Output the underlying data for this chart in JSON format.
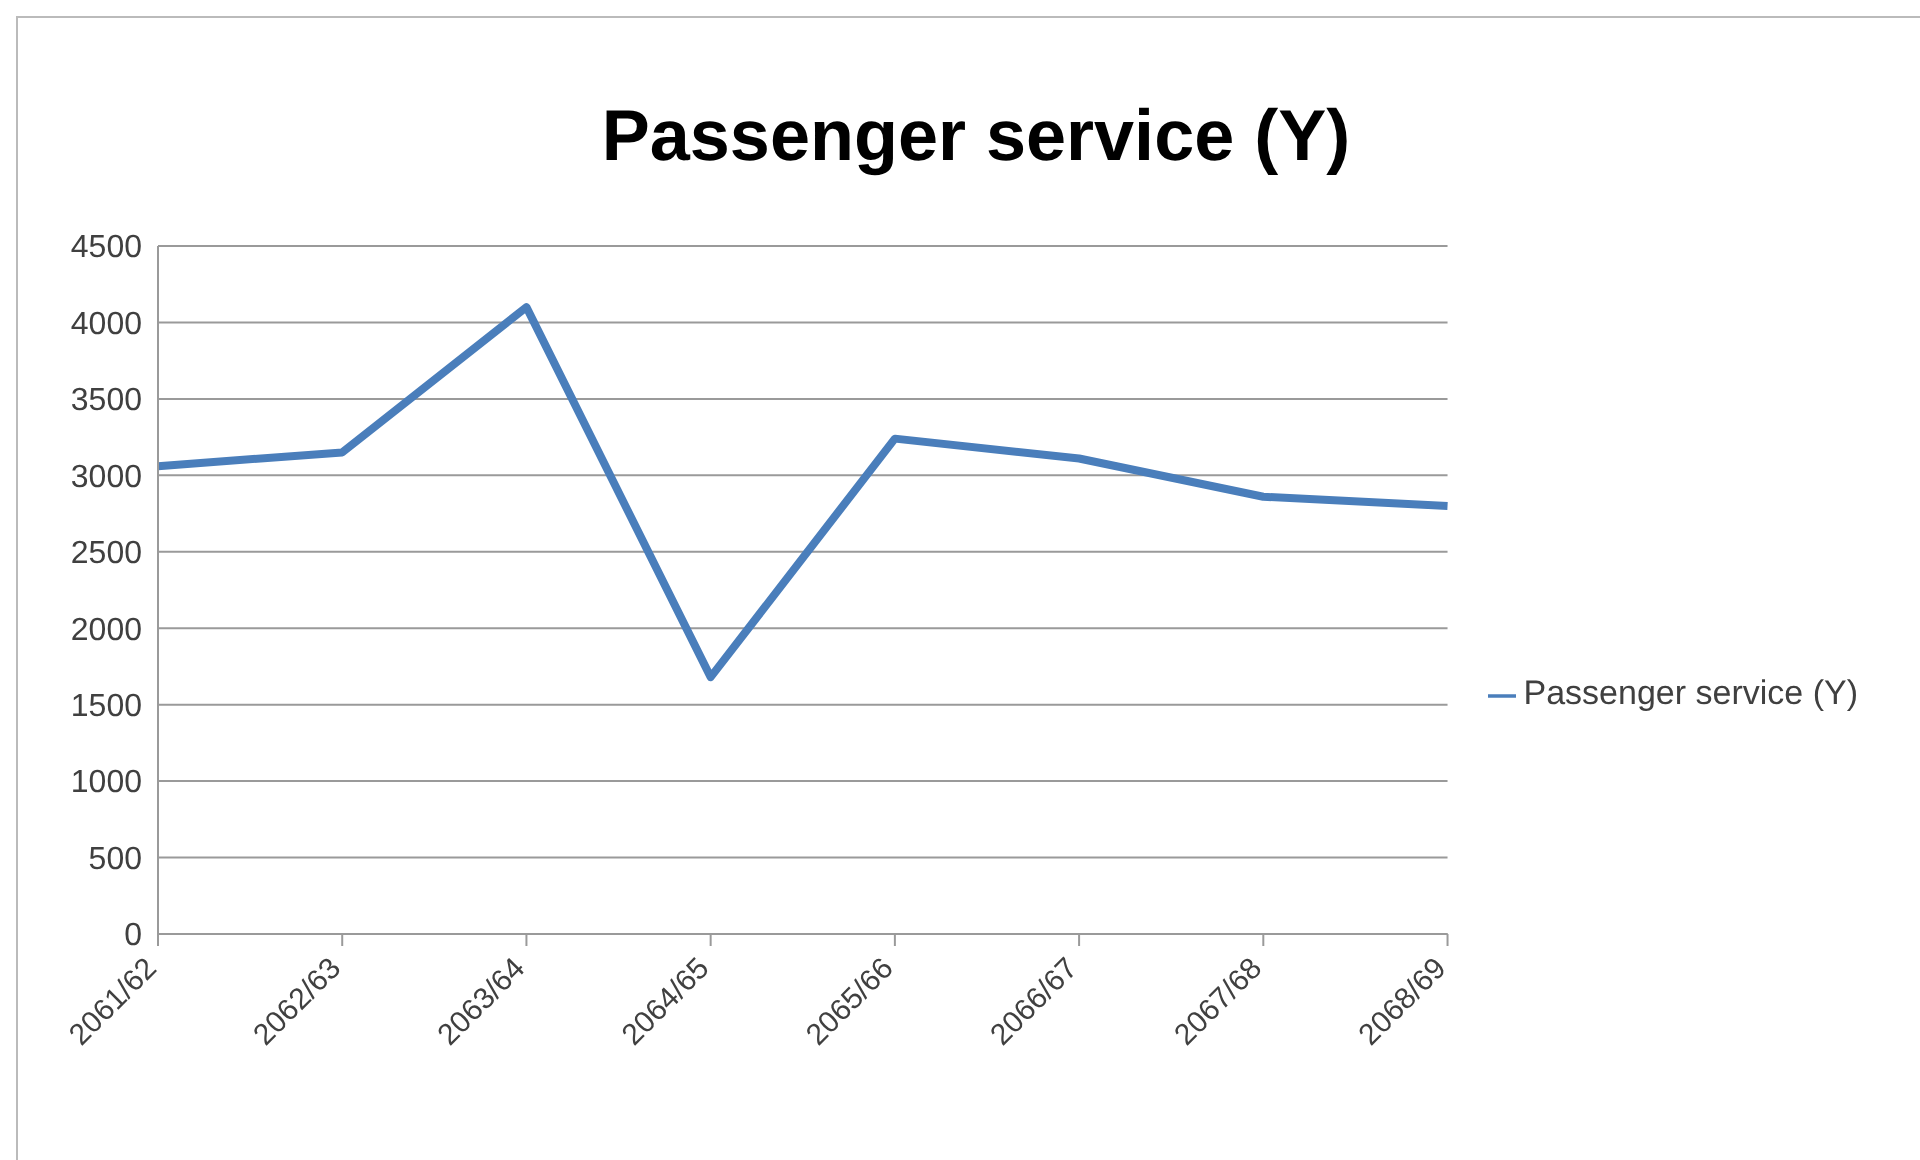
{
  "chart_data": {
    "type": "line",
    "title": "Passenger service (Y)",
    "categories": [
      "2061/62",
      "2062/63",
      "2063/64",
      "2064/65",
      "2065/66",
      "2066/67",
      "2067/68",
      "2068/69"
    ],
    "series": [
      {
        "name": "Passenger service (Y)",
        "color": "#4a7ebb",
        "values": [
          3060,
          3150,
          4100,
          1680,
          3240,
          3110,
          2860,
          2800
        ]
      }
    ],
    "ylim": [
      0,
      4500
    ],
    "yticks": [
      0,
      500,
      1000,
      1500,
      2000,
      2500,
      3000,
      3500,
      4000,
      4500
    ],
    "grid": "y",
    "legend": "right",
    "marker": "none"
  }
}
